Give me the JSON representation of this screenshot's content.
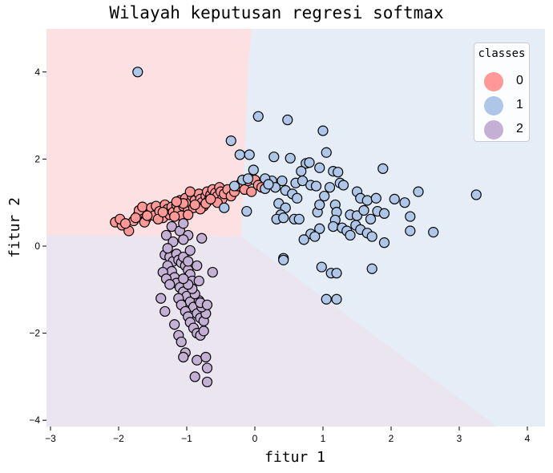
{
  "chart_data": {
    "type": "scatter",
    "title": "Wilayah keputusan regresi softmax",
    "xlabel": "fitur 1",
    "ylabel": "fitur 2",
    "xlim": [
      -3.0,
      4.26
    ],
    "ylim": [
      -4.14,
      5.0
    ],
    "xticks": [
      -3,
      -2,
      -1,
      0,
      1,
      2,
      3,
      4
    ],
    "yticks": [
      -4,
      -2,
      0,
      2,
      4
    ],
    "grid": false,
    "legend": {
      "title": "classes",
      "position": "upper right",
      "entries": [
        "0",
        "1",
        "2"
      ]
    },
    "colors": {
      "0": "#ff9896",
      "1": "#aec7e8",
      "2": "#c5b0d5"
    },
    "region_colors": {
      "0": "#fde0e1",
      "1": "#e5edf7",
      "2": "#ebe5f0"
    },
    "decision_boundaries": {
      "red_blue": [
        [
          -0.05,
          5.0
        ],
        [
          -0.1,
          4.0
        ],
        [
          -0.2,
          0.22
        ]
      ],
      "red_purple": [
        [
          -3.0,
          0.25
        ],
        [
          -0.2,
          0.22
        ]
      ],
      "blue_purple": [
        [
          -0.2,
          0.22
        ],
        [
          3.55,
          -4.14
        ]
      ]
    },
    "series": [
      {
        "name": "0",
        "points": [
          [
            -2.05,
            0.55
          ],
          [
            -1.95,
            0.48
          ],
          [
            -1.98,
            0.62
          ],
          [
            -1.85,
            0.35
          ],
          [
            -1.78,
            0.58
          ],
          [
            -1.72,
            0.7
          ],
          [
            -1.7,
            0.82
          ],
          [
            -1.65,
            0.9
          ],
          [
            -1.6,
            0.62
          ],
          [
            -1.55,
            0.75
          ],
          [
            -1.52,
            0.88
          ],
          [
            -1.48,
            0.7
          ],
          [
            -1.45,
            0.92
          ],
          [
            -1.4,
            0.8
          ],
          [
            -1.35,
            0.65
          ],
          [
            -1.32,
            0.95
          ],
          [
            -1.28,
            0.85
          ],
          [
            -1.25,
            0.72
          ],
          [
            -1.22,
            0.9
          ],
          [
            -1.2,
            0.78
          ],
          [
            -1.15,
            0.95
          ],
          [
            -1.12,
            0.82
          ],
          [
            -1.1,
            1.05
          ],
          [
            -1.08,
            0.7
          ],
          [
            -1.05,
            0.92
          ],
          [
            -1.02,
            1.1
          ],
          [
            -0.98,
            0.85
          ],
          [
            -0.95,
            1.0
          ],
          [
            -0.92,
            1.15
          ],
          [
            -0.9,
            0.88
          ],
          [
            -0.88,
            1.05
          ],
          [
            -0.85,
            0.95
          ],
          [
            -0.82,
            1.2
          ],
          [
            -0.8,
            1.08
          ],
          [
            -0.78,
            1.0
          ],
          [
            -0.75,
            0.92
          ],
          [
            -0.72,
            1.15
          ],
          [
            -0.7,
            1.25
          ],
          [
            -0.68,
            1.05
          ],
          [
            -0.65,
            1.18
          ],
          [
            -0.62,
            1.3
          ],
          [
            -0.6,
            1.1
          ],
          [
            -0.58,
            1.22
          ],
          [
            -0.55,
            1.15
          ],
          [
            -0.52,
            1.35
          ],
          [
            -0.5,
            1.25
          ],
          [
            -0.48,
            1.08
          ],
          [
            -0.45,
            1.2
          ],
          [
            -0.4,
            1.3
          ],
          [
            -0.35,
            1.15
          ],
          [
            -0.3,
            1.25
          ],
          [
            -0.25,
            1.38
          ],
          [
            -0.2,
            1.45
          ],
          [
            -0.15,
            1.3
          ],
          [
            -0.1,
            1.5
          ],
          [
            -0.05,
            1.25
          ],
          [
            0.0,
            1.52
          ],
          [
            0.05,
            1.4
          ],
          [
            0.1,
            1.35
          ],
          [
            -1.62,
            0.55
          ],
          [
            -1.42,
            0.62
          ],
          [
            -1.18,
            0.68
          ],
          [
            -0.98,
            0.72
          ],
          [
            -0.8,
            0.85
          ],
          [
            -1.35,
            0.78
          ],
          [
            -1.05,
            0.98
          ],
          [
            -0.95,
            1.25
          ],
          [
            -0.72,
            0.98
          ],
          [
            -0.55,
            1.0
          ],
          [
            -1.75,
            0.65
          ],
          [
            -1.9,
            0.52
          ],
          [
            -1.58,
            0.7
          ],
          [
            -1.15,
            1.02
          ],
          [
            -0.88,
            0.95
          ],
          [
            -0.65,
            1.08
          ]
        ]
      },
      {
        "name": "1",
        "points": [
          [
            -1.72,
            4.0
          ],
          [
            0.05,
            2.98
          ],
          [
            0.48,
            2.9
          ],
          [
            1.0,
            2.65
          ],
          [
            -0.35,
            2.42
          ],
          [
            1.05,
            2.15
          ],
          [
            -0.22,
            2.1
          ],
          [
            -0.08,
            2.1
          ],
          [
            0.28,
            2.05
          ],
          [
            0.52,
            2.02
          ],
          [
            0.75,
            1.9
          ],
          [
            0.8,
            1.92
          ],
          [
            0.95,
            1.8
          ],
          [
            1.15,
            1.72
          ],
          [
            1.22,
            1.7
          ],
          [
            1.88,
            1.78
          ],
          [
            0.68,
            1.72
          ],
          [
            -0.02,
            1.75
          ],
          [
            0.25,
            1.5
          ],
          [
            0.4,
            1.5
          ],
          [
            0.6,
            1.45
          ],
          [
            0.7,
            1.5
          ],
          [
            0.82,
            1.4
          ],
          [
            0.9,
            1.38
          ],
          [
            1.1,
            1.35
          ],
          [
            1.25,
            1.45
          ],
          [
            1.3,
            1.4
          ],
          [
            1.5,
            1.25
          ],
          [
            1.55,
            1.1
          ],
          [
            1.65,
            1.05
          ],
          [
            1.78,
            1.1
          ],
          [
            2.05,
            1.08
          ],
          [
            2.2,
            1.0
          ],
          [
            2.4,
            1.25
          ],
          [
            3.25,
            1.18
          ],
          [
            -0.18,
            1.52
          ],
          [
            0.15,
            1.32
          ],
          [
            0.3,
            1.35
          ],
          [
            0.45,
            1.28
          ],
          [
            0.55,
            1.2
          ],
          [
            0.62,
            1.1
          ],
          [
            0.35,
            0.98
          ],
          [
            0.45,
            0.88
          ],
          [
            0.38,
            0.72
          ],
          [
            0.32,
            0.62
          ],
          [
            0.58,
            0.62
          ],
          [
            0.65,
            0.62
          ],
          [
            0.92,
            0.78
          ],
          [
            0.95,
            0.95
          ],
          [
            1.02,
            1.15
          ],
          [
            1.18,
            0.95
          ],
          [
            1.2,
            0.78
          ],
          [
            1.18,
            0.6
          ],
          [
            1.4,
            0.72
          ],
          [
            1.5,
            0.7
          ],
          [
            1.6,
            0.82
          ],
          [
            1.7,
            0.62
          ],
          [
            1.8,
            0.8
          ],
          [
            1.9,
            0.75
          ],
          [
            2.28,
            0.68
          ],
          [
            1.15,
            0.45
          ],
          [
            1.28,
            0.42
          ],
          [
            1.35,
            0.35
          ],
          [
            1.4,
            0.25
          ],
          [
            1.48,
            0.48
          ],
          [
            1.55,
            0.38
          ],
          [
            1.65,
            0.3
          ],
          [
            1.72,
            0.22
          ],
          [
            1.9,
            0.08
          ],
          [
            2.28,
            0.35
          ],
          [
            2.62,
            0.32
          ],
          [
            0.95,
            0.4
          ],
          [
            0.82,
            0.28
          ],
          [
            0.72,
            0.15
          ],
          [
            0.88,
            0.22
          ],
          [
            0.42,
            0.65
          ],
          [
            -0.12,
            0.8
          ],
          [
            -0.45,
            0.88
          ],
          [
            0.42,
            -0.28
          ],
          [
            0.42,
            -0.32
          ],
          [
            0.98,
            -0.48
          ],
          [
            1.12,
            -0.62
          ],
          [
            1.2,
            -0.62
          ],
          [
            1.72,
            -0.52
          ],
          [
            1.05,
            -1.22
          ],
          [
            1.2,
            -1.22
          ],
          [
            -0.3,
            1.38
          ],
          [
            -0.1,
            1.55
          ],
          [
            0.15,
            1.55
          ],
          [
            0.2,
            1.42
          ]
        ]
      },
      {
        "name": "2",
        "points": [
          [
            -1.32,
            -0.2
          ],
          [
            -1.25,
            -0.25
          ],
          [
            -1.2,
            -0.35
          ],
          [
            -1.15,
            -0.18
          ],
          [
            -1.12,
            -0.32
          ],
          [
            -1.08,
            -0.38
          ],
          [
            -1.02,
            -0.45
          ],
          [
            -0.98,
            -0.55
          ],
          [
            -0.95,
            -0.65
          ],
          [
            -0.92,
            -0.8
          ],
          [
            -1.28,
            -0.45
          ],
          [
            -1.22,
            -0.58
          ],
          [
            -1.18,
            -0.72
          ],
          [
            -1.15,
            -0.85
          ],
          [
            -1.1,
            -0.95
          ],
          [
            -1.05,
            -1.05
          ],
          [
            -1.0,
            -1.15
          ],
          [
            -0.95,
            -1.28
          ],
          [
            -0.9,
            -1.4
          ],
          [
            -0.85,
            -1.55
          ],
          [
            -0.8,
            -1.65
          ],
          [
            -0.75,
            -1.72
          ],
          [
            -0.72,
            -1.55
          ],
          [
            -0.78,
            -1.4
          ],
          [
            -0.82,
            -1.25
          ],
          [
            -0.88,
            -1.1
          ],
          [
            -0.92,
            -0.98
          ],
          [
            -0.98,
            -0.88
          ],
          [
            -1.05,
            -0.75
          ],
          [
            -1.12,
            -1.2
          ],
          [
            -1.08,
            -1.35
          ],
          [
            -1.02,
            -1.5
          ],
          [
            -0.98,
            -1.62
          ],
          [
            -0.95,
            -1.75
          ],
          [
            -0.9,
            -1.88
          ],
          [
            -0.85,
            -2.0
          ],
          [
            -0.8,
            -2.05
          ],
          [
            -0.75,
            -1.95
          ],
          [
            -1.35,
            -0.6
          ],
          [
            -1.3,
            -0.75
          ],
          [
            -1.25,
            -0.88
          ],
          [
            -1.38,
            -1.2
          ],
          [
            -1.32,
            -1.5
          ],
          [
            -0.62,
            -0.6
          ],
          [
            -0.82,
            -0.8
          ],
          [
            -1.05,
            -0.25
          ],
          [
            -0.98,
            -0.35
          ],
          [
            -0.85,
            -0.45
          ],
          [
            -1.18,
            -1.8
          ],
          [
            -1.12,
            -2.05
          ],
          [
            -1.08,
            -2.2
          ],
          [
            -1.02,
            -2.45
          ],
          [
            -1.05,
            -2.55
          ],
          [
            -0.85,
            -2.62
          ],
          [
            -0.72,
            -2.55
          ],
          [
            -0.7,
            -2.8
          ],
          [
            -0.88,
            -3.0
          ],
          [
            -0.7,
            -3.12
          ],
          [
            -0.8,
            -1.3
          ],
          [
            -0.7,
            -1.35
          ],
          [
            -1.22,
            0.45
          ],
          [
            -1.3,
            0.25
          ],
          [
            -1.1,
            0.35
          ],
          [
            -1.05,
            0.52
          ],
          [
            -0.98,
            0.25
          ],
          [
            -0.78,
            0.18
          ],
          [
            -1.05,
            0.15
          ],
          [
            -1.2,
            0.1
          ],
          [
            -0.95,
            -0.1
          ],
          [
            -1.28,
            -0.05
          ]
        ]
      }
    ]
  }
}
